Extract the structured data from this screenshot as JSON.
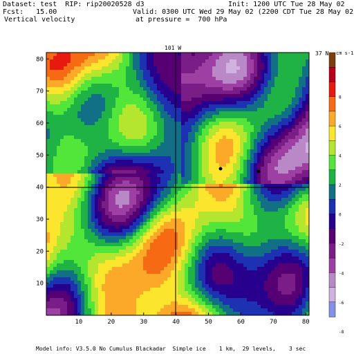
{
  "header": {
    "dataset_line": "Dataset: test  RIP: rip20020528 d3",
    "forecast_line": "Fcst:   15.00",
    "field_line": "Vertical velocity",
    "init_line": "Init: 1200 UTC Tue 28 May 02",
    "valid_line": "Valid: 0300 UTC Wed 29 May 02 (2200 CDT Tue 28 May 02)",
    "pressure_line": "at pressure =  700 hPa"
  },
  "map": {
    "longitude_label": "101 W",
    "latitude_label": "37 N",
    "x_ticks": [
      "10",
      "20",
      "30",
      "40",
      "50",
      "60",
      "70",
      "80"
    ],
    "y_ticks": [
      "10",
      "20",
      "30",
      "40",
      "50",
      "60",
      "70",
      "80"
    ],
    "x_range": [
      0,
      81
    ],
    "y_range": [
      0,
      82
    ]
  },
  "colorbar": {
    "units": "cm s-1",
    "labels": [
      "8",
      "6",
      "4",
      "2",
      "0",
      "-2",
      "-4",
      "-6",
      "-8",
      "-10"
    ],
    "colors": [
      "#7b3f10",
      "#b8001c",
      "#e81a10",
      "#f76a14",
      "#fca828",
      "#fce52d",
      "#b4e630",
      "#52e63a",
      "#1fb345",
      "#116f86",
      "#1d31b3",
      "#27008e",
      "#570074",
      "#7a1d86",
      "#9d3fa3",
      "#b888c7",
      "#d0b2e0",
      "#8391e8"
    ]
  },
  "footer": {
    "model_info": "Model info: V3.5.0 No Cumulus Blackadar  Simple ice    1 km,  29 levels,    3 sec"
  }
}
